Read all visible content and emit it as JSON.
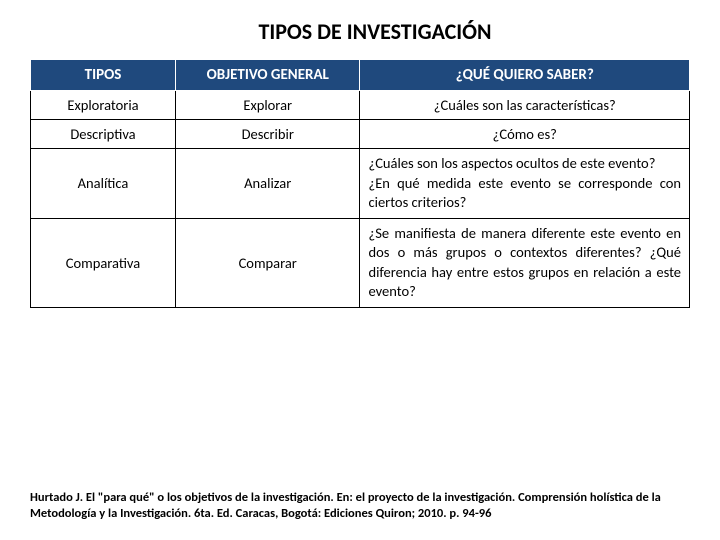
{
  "title": "TIPOS DE INVESTIGACIÓN",
  "table": {
    "headers": {
      "col1": "TIPOS",
      "col2": "OBJETIVO GENERAL",
      "col3": "¿QUÉ QUIERO SABER?"
    },
    "rows": [
      {
        "tipo": "Exploratoria",
        "objetivo": "Explorar",
        "que": "¿Cuáles son las características?",
        "que_align": "center"
      },
      {
        "tipo": "Descriptiva",
        "objetivo": "Describir",
        "que": "¿Cómo es?",
        "que_align": "center"
      },
      {
        "tipo": "Analítica",
        "objetivo": "Analizar",
        "que": "¿Cuáles son los aspectos ocultos de este evento?\n¿En qué medida este evento se corresponde con ciertos criterios?",
        "que_align": "justify"
      },
      {
        "tipo": "Comparativa",
        "objetivo": "Comparar",
        "que": "¿Se manifiesta de manera diferente este evento en dos o más grupos o contextos diferentes? ¿Qué diferencia hay entre estos grupos en relación a este evento?",
        "que_align": "justify"
      }
    ],
    "header_bg": "#1f497d",
    "header_text_color": "#ffffff",
    "cell_border_color": "#000000",
    "font_family": "Calibri",
    "title_fontsize": 22,
    "header_fontsize": 15,
    "cell_fontsize": 14.5
  },
  "citation": "Hurtado J. El \"para qué\" o los objetivos de la investigación. En: el proyecto de la investigación. Comprensión holística de la Metodología y la Investigación. 6ta. Ed. Caracas, Bogotá: Ediciones Quiron; 2010. p. 94-96"
}
